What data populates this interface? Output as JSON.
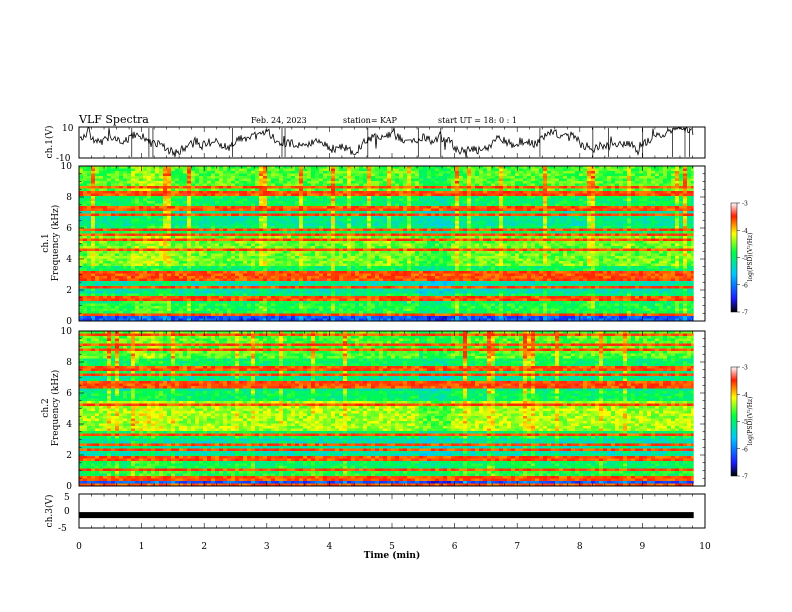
{
  "header": {
    "title": "VLF Spectra",
    "date": "Feb. 24, 2023",
    "station": "station= KAP",
    "start": "start  UT =   18: 0  : 1"
  },
  "colors": {
    "colormap": [
      "#000000",
      "#1a1aff",
      "#00c8ff",
      "#00ff40",
      "#ffff00",
      "#ff2000",
      "#ffffff"
    ]
  },
  "chart_data": [
    {
      "type": "line",
      "name": "ch1-waveform",
      "ylabel": "ch.1(V)",
      "ylim": [
        -10,
        10
      ],
      "yticks": [
        "10",
        "-10"
      ],
      "xlim": [
        0,
        10
      ]
    },
    {
      "type": "heatmap",
      "name": "ch1-spectrogram",
      "ylabel_top": "ch.1",
      "ylabel": "Frequency (kHz)",
      "ylim": [
        0,
        10
      ],
      "yticks": [
        "0",
        "2",
        "4",
        "6",
        "8",
        "10"
      ],
      "xlim": [
        0,
        9.82
      ],
      "colorbar": {
        "label": "log(PSD)(V²/Hz)",
        "range": [
          -7,
          -3
        ],
        "ticks": [
          "-3",
          "-4",
          "-5",
          "-6",
          "-7"
        ]
      }
    },
    {
      "type": "heatmap",
      "name": "ch2-spectrogram",
      "ylabel_top": "ch.2",
      "ylabel": "Frequency (kHz)",
      "ylim": [
        0,
        10
      ],
      "yticks": [
        "0",
        "2",
        "4",
        "6",
        "8",
        "10"
      ],
      "xlim": [
        0,
        9.82
      ],
      "colorbar": {
        "label": "log(PSD)(V²/Hz)",
        "range": [
          -7,
          -3
        ],
        "ticks": [
          "-3",
          "-4",
          "-5",
          "-6",
          "-7"
        ]
      }
    },
    {
      "type": "line",
      "name": "ch3-signal",
      "ylabel": "ch.3(V)",
      "ylim": [
        -5,
        5
      ],
      "yticks": [
        "5",
        "0",
        "-5"
      ],
      "xlabel": "Time (min)",
      "xlim": [
        0,
        10
      ],
      "xticks": [
        "0",
        "1",
        "2",
        "3",
        "4",
        "5",
        "6",
        "7",
        "8",
        "9",
        "10"
      ],
      "values": [
        -1.2,
        -1.2
      ]
    }
  ]
}
